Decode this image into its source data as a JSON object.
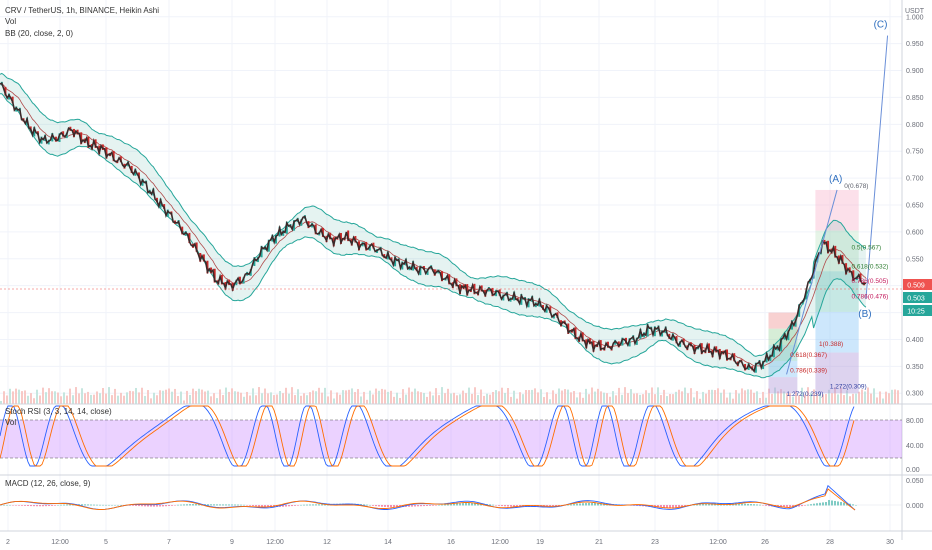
{
  "chart_data": {
    "type": "line",
    "header": {
      "title": "CRV / TetherUS, 1h, BINANCE, Heikin Ashi",
      "vol_label": "Vol",
      "bb_label": "BB (20, close, 2, 0)",
      "currency": "USDT"
    },
    "y_axis": {
      "ticks": [
        "1.000",
        "0.950",
        "0.900",
        "0.850",
        "0.800",
        "0.750",
        "0.700",
        "0.650",
        "0.600",
        "0.550",
        "0.500",
        "0.450",
        "0.400",
        "0.350",
        "0.300"
      ],
      "ylim": [
        0.28,
        1.02
      ]
    },
    "price_labels": {
      "last": "0.509",
      "close": "0.503",
      "timer": "10:25"
    },
    "x_axis": {
      "ticks": [
        "2",
        "12:00",
        "5",
        "7",
        "9",
        "12:00",
        "12",
        "14",
        "16",
        "12:00",
        "19",
        "21",
        "23",
        "12:00",
        "26",
        "28",
        "30"
      ]
    },
    "price": {
      "x": [
        0,
        4,
        8,
        12,
        16,
        20,
        24,
        28,
        32,
        36,
        40,
        44,
        48,
        52,
        56,
        60,
        64,
        68,
        72,
        76,
        80,
        84,
        88,
        92,
        96,
        100,
        104,
        108,
        112,
        116,
        120,
        124,
        128,
        132,
        136,
        140,
        144,
        148,
        152,
        156,
        160,
        164,
        168
      ],
      "y": [
        0.875,
        0.835,
        0.795,
        0.77,
        0.775,
        0.79,
        0.765,
        0.755,
        0.735,
        0.72,
        0.69,
        0.655,
        0.625,
        0.59,
        0.55,
        0.51,
        0.5,
        0.515,
        0.56,
        0.59,
        0.61,
        0.625,
        0.6,
        0.585,
        0.59,
        0.575,
        0.57,
        0.55,
        0.54,
        0.53,
        0.53,
        0.51,
        0.495,
        0.49,
        0.49,
        0.48,
        0.475,
        0.47,
        0.455,
        0.43,
        0.405,
        0.39,
        0.385
      ]
    },
    "price_late": {
      "x": [
        172,
        176,
        180,
        184,
        188,
        192,
        196,
        200,
        204,
        208,
        212,
        216,
        220,
        224,
        228,
        232,
        236,
        240
      ],
      "y": [
        0.395,
        0.4,
        0.42,
        0.415,
        0.395,
        0.385,
        0.38,
        0.375,
        0.36,
        0.345,
        0.36,
        0.39,
        0.43,
        0.5,
        0.58,
        0.555,
        0.52,
        0.505
      ]
    },
    "forecast_line": {
      "x": [
        232,
        240,
        246
      ],
      "y": [
        0.678,
        0.475,
        0.965
      ]
    },
    "wave_labels": [
      "(A)",
      "(B)",
      "(C)"
    ],
    "fib_levels": {
      "labels": [
        "0(0.678)",
        "0.5(0.567)",
        "0.618(0.532)",
        "0.786(0.505)",
        "0.786(0.476)",
        "1(0.388)",
        "1.272(0.309)",
        "0.618(0.367)",
        "0.786(0.339)",
        "1.272(0.239)"
      ]
    },
    "stoch_rsi": {
      "label": "Stoch RSI (3, 3, 14, 14, close)",
      "vol_label": "Vol",
      "ticks": [
        "80.00",
        "40.00",
        "0.00"
      ]
    },
    "macd": {
      "label": "MACD (12, 26, close, 9)",
      "ticks": [
        "0.050",
        "0.000"
      ]
    }
  }
}
